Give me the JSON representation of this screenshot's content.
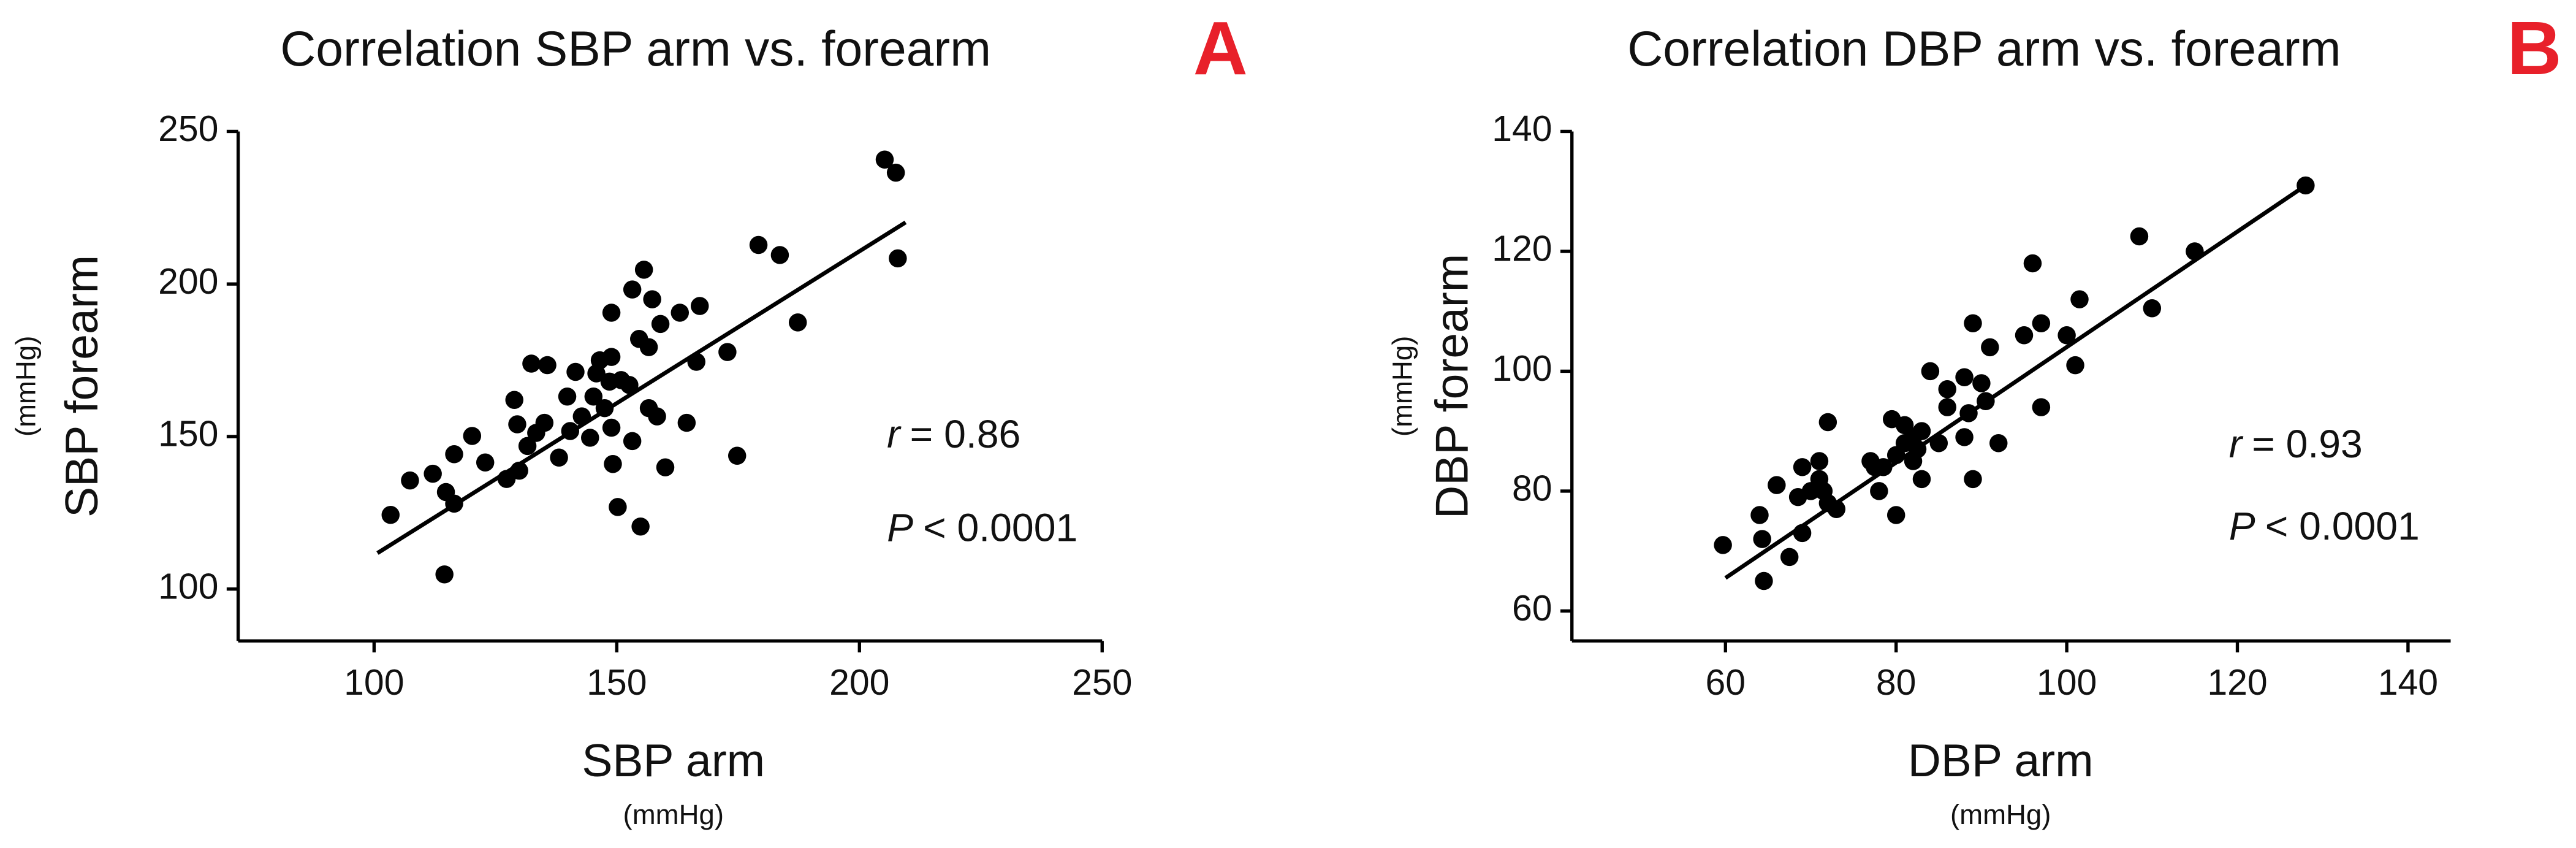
{
  "chart_data": [
    {
      "type": "scatter",
      "title": "Correlation SBP arm vs. forearm",
      "panel_label": "A",
      "x_label": "SBP arm",
      "x_unit": "(mmHg)",
      "y_label": "SBP forearm",
      "y_unit": "(mmHg)",
      "color": "#000000",
      "x": [
        103.4,
        107.4,
        112.1,
        116.5,
        114.8,
        114.5,
        116.5,
        120.2,
        122.9,
        127.3,
        128.9,
        129.9,
        129.5,
        131.6,
        132.4,
        135.7,
        133.4,
        135.1,
        138.1,
        139.8,
        140.4,
        141.5,
        142.8,
        144.5,
        145.2,
        145.8,
        146.5,
        147.5,
        148.5,
        148.9,
        148.9,
        150.9,
        148.9,
        149.2,
        150.2,
        152.6,
        153.2,
        153.2,
        154.6,
        154.9,
        155.6,
        156.6,
        156.6,
        157.3,
        158.3,
        159,
        160,
        163,
        164.4,
        166.4,
        167.1,
        172.8,
        174.8,
        179.2,
        183.6,
        187.3,
        205.2,
        207.5,
        207.9
      ],
      "values": [
        124.3,
        135.6,
        137.8,
        144.2,
        131.8,
        104.8,
        128,
        150.2,
        141.5,
        136.1,
        162,
        138.8,
        154,
        146.9,
        173.9,
        173.4,
        151.2,
        154.5,
        143.1,
        163.1,
        151.8,
        171.2,
        156.6,
        149.6,
        163.1,
        170.7,
        175,
        159.3,
        168,
        152.9,
        176.1,
        168.5,
        190.6,
        141,
        126.9,
        166.9,
        198.2,
        148.5,
        182,
        120.5,
        204.7,
        159.3,
        179.3,
        195,
        156.6,
        186.9,
        139.9,
        190.6,
        154.5,
        174.5,
        192.8,
        177.7,
        143.7,
        212.8,
        209.5,
        187.4,
        240.8,
        236.5,
        208.4
      ],
      "fit_line": {
        "x": [
          100.7,
          209.5
        ],
        "y": [
          111.8,
          220.2
        ]
      },
      "stat_r_symbol": "r",
      "stat_r_value": "= 0.86",
      "stat_p_symbol": "P",
      "stat_p_value": "< 0.0001",
      "xlim": [
        72,
        250
      ],
      "ylim": [
        83,
        250
      ],
      "xticks": [
        100,
        150,
        200,
        250
      ],
      "yticks": [
        100,
        150,
        200,
        250
      ]
    },
    {
      "type": "scatter",
      "title": "Correlation DBP arm vs. forearm",
      "panel_label": "B",
      "x_label": "DBP arm",
      "x_unit": "(mmHg)",
      "y_label": "DBP forearm",
      "y_unit": "(mmHg)",
      "color": "#000000",
      "x": [
        59.7,
        64,
        64.3,
        64.5,
        66,
        67.5,
        68.5,
        69,
        69,
        70,
        71,
        71,
        71.5,
        72,
        72,
        73,
        77,
        77.5,
        78,
        78.5,
        79.5,
        80,
        80,
        81,
        81,
        82,
        82,
        82.5,
        83,
        83,
        84,
        85,
        86,
        86,
        88,
        88,
        88.5,
        89,
        89,
        90,
        90.5,
        91,
        92,
        95,
        96,
        97,
        97,
        100,
        101,
        101.5,
        108.5,
        110,
        115,
        128
      ],
      "values": [
        71,
        76,
        72,
        65,
        81,
        69,
        79,
        84,
        73,
        80,
        85,
        82,
        80,
        91.5,
        78,
        77,
        85,
        84,
        80,
        84,
        92,
        86,
        76,
        91,
        88,
        89,
        85,
        87,
        90,
        82,
        100,
        88,
        94,
        97,
        99,
        89,
        93,
        108,
        82,
        98,
        95,
        104,
        88,
        106,
        118,
        94,
        108,
        106,
        101,
        112,
        122.5,
        110.5,
        120,
        131
      ],
      "fit_line": {
        "x": [
          60,
          128
        ],
        "y": [
          65.5,
          131
        ]
      },
      "stat_r_symbol": "r",
      "stat_r_value": "= 0.93",
      "stat_p_symbol": "P",
      "stat_p_value": "< 0.0001",
      "xlim": [
        42,
        145
      ],
      "ylim": [
        55,
        140
      ],
      "xticks": [
        60,
        80,
        100,
        120,
        140
      ],
      "yticks": [
        60,
        80,
        100,
        120,
        140
      ]
    }
  ]
}
